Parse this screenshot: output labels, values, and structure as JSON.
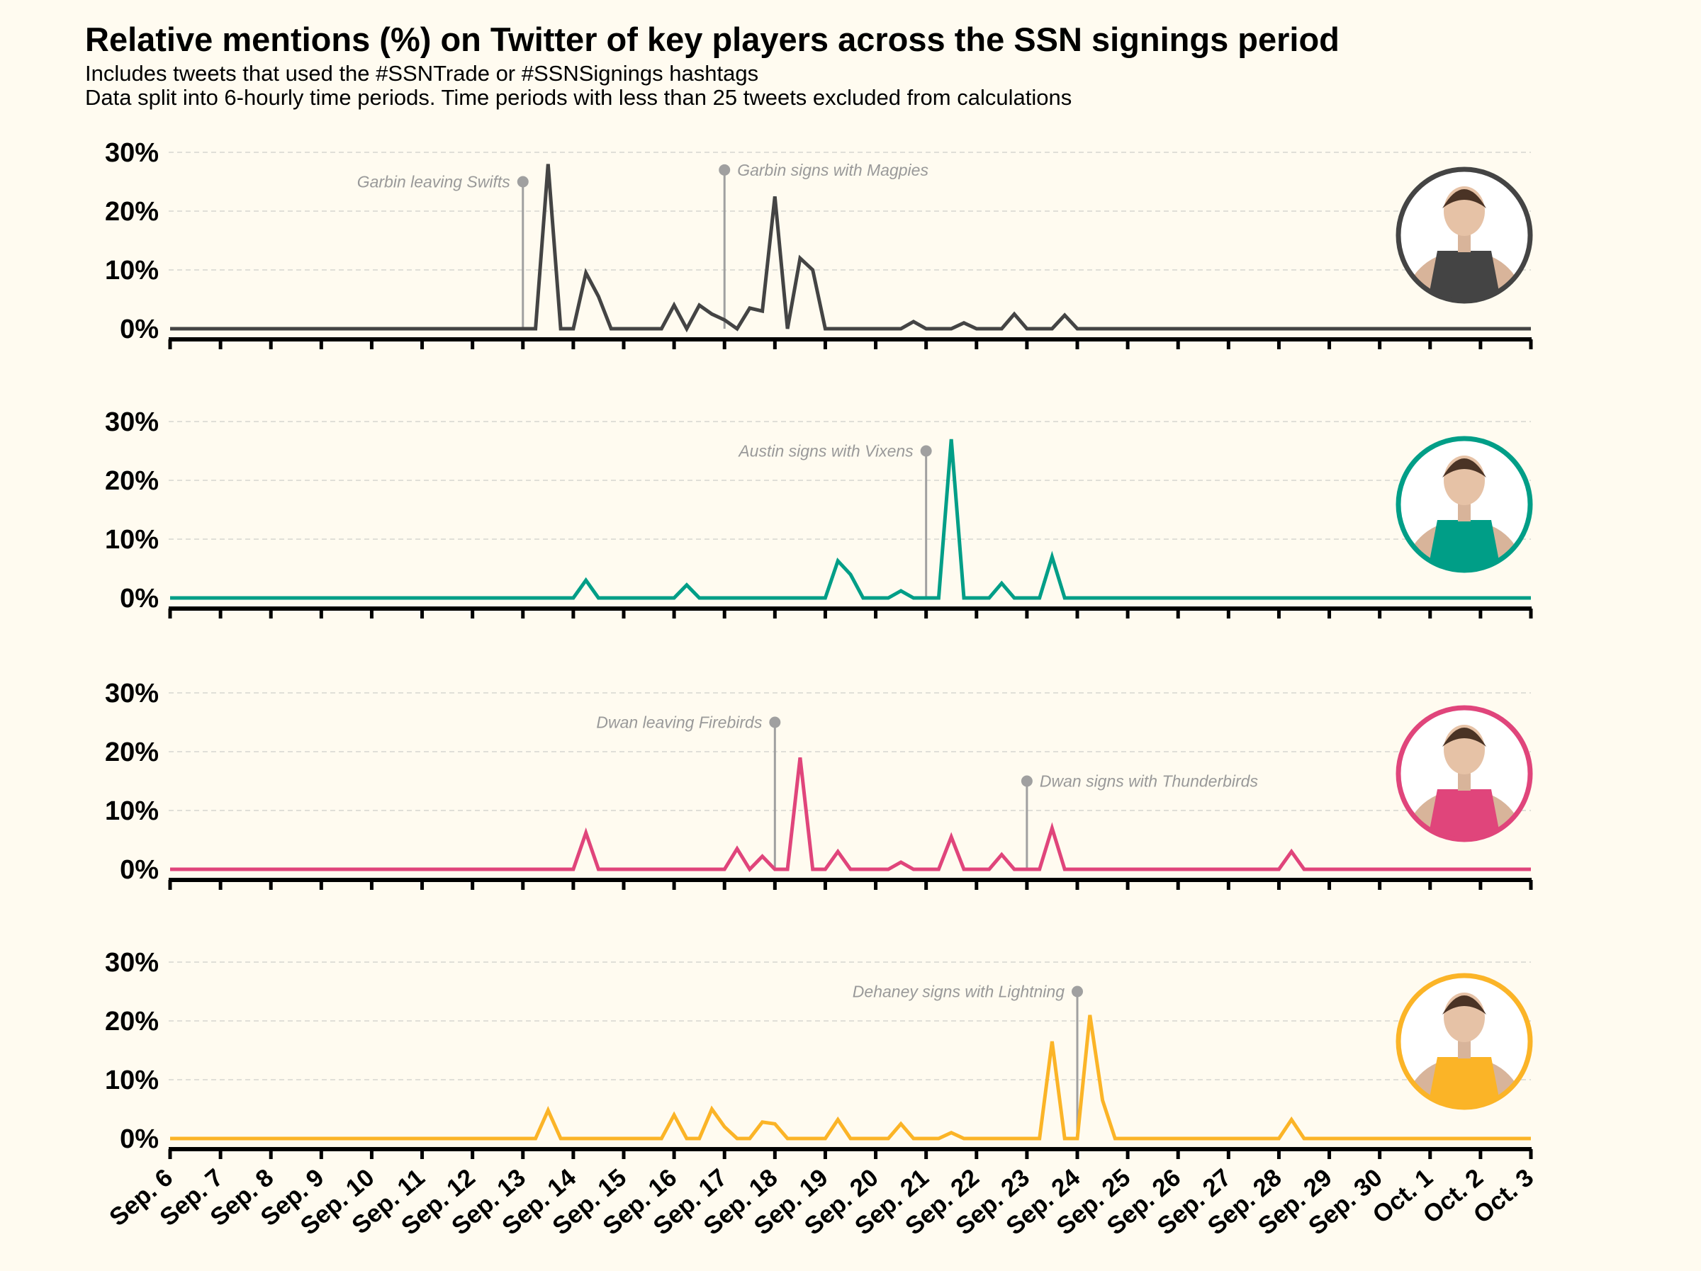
{
  "title": "Relative mentions (%) on Twitter of key players across the SSN signings period",
  "subtitle_line1": "Includes tweets that used the #SSNTrade or #SSNSignings hashtags",
  "subtitle_line2": "Data split into 6-hourly time periods. Time periods with less than 25 tweets excluded from calculations",
  "chart_data": {
    "type": "line",
    "x": [
      "Sep. 6",
      "Sep. 7",
      "Sep. 8",
      "Sep. 9",
      "Sep. 10",
      "Sep. 11",
      "Sep. 12",
      "Sep. 13",
      "Sep. 14",
      "Sep. 15",
      "Sep. 16",
      "Sep. 17",
      "Sep. 18",
      "Sep. 19",
      "Sep. 20",
      "Sep. 21",
      "Sep. 22",
      "Sep. 23",
      "Sep. 24",
      "Sep. 25",
      "Sep. 26",
      "Sep. 27",
      "Sep. 28",
      "Sep. 29",
      "Sep. 30",
      "Oct. 1",
      "Oct. 2",
      "Oct. 3"
    ],
    "y_ticks": [
      "0%",
      "10%",
      "20%",
      "30%"
    ],
    "ylim": [
      0,
      30
    ],
    "grid": "horizontal dashed",
    "panels": [
      {
        "color": "#444444",
        "points": [
          [
            "Sep. 6",
            0
          ],
          [
            "Sep. 13",
            0
          ],
          [
            "Sep. 13.25",
            0
          ],
          [
            "Sep. 13.5",
            28
          ],
          [
            "Sep. 13.75",
            0
          ],
          [
            "Sep. 14",
            0
          ],
          [
            "Sep. 14.25",
            9.5
          ],
          [
            "Sep. 14.5",
            5.5
          ],
          [
            "Sep. 14.75",
            0
          ],
          [
            "Sep. 15.75",
            0
          ],
          [
            "Sep. 16",
            4
          ],
          [
            "Sep. 16.25",
            0
          ],
          [
            "Sep. 16.5",
            4
          ],
          [
            "Sep. 16.75",
            2.5
          ],
          [
            "Sep. 17",
            1.5
          ],
          [
            "Sep. 17.25",
            0
          ],
          [
            "Sep. 17.5",
            3.5
          ],
          [
            "Sep. 17.75",
            3
          ],
          [
            "Sep. 18",
            22.5
          ],
          [
            "Sep. 18.25",
            0
          ],
          [
            "Sep. 18.5",
            12
          ],
          [
            "Sep. 18.75",
            10
          ],
          [
            "Sep. 19",
            0
          ],
          [
            "Sep. 20.5",
            0
          ],
          [
            "Sep. 20.75",
            1.2
          ],
          [
            "Sep. 21",
            0
          ],
          [
            "Sep. 21.5",
            0
          ],
          [
            "Sep. 21.75",
            1
          ],
          [
            "Sep. 22",
            0
          ],
          [
            "Sep. 22.5",
            0
          ],
          [
            "Sep. 22.75",
            2.5
          ],
          [
            "Sep. 23",
            0
          ],
          [
            "Sep. 23.5",
            0
          ],
          [
            "Sep. 23.75",
            2.3
          ],
          [
            "Sep. 24",
            0
          ],
          [
            "Oct. 3",
            0
          ]
        ],
        "annotations": [
          {
            "text": "Garbin leaving Swifts",
            "x": "Sep. 13",
            "y": 25,
            "side": "left"
          },
          {
            "text": "Garbin signs with Magpies",
            "x": "Sep. 17",
            "y": 27,
            "side": "right"
          }
        ]
      },
      {
        "color": "#009E87",
        "points": [
          [
            "Sep. 6",
            0
          ],
          [
            "Sep. 14",
            0
          ],
          [
            "Sep. 14.25",
            3
          ],
          [
            "Sep. 14.5",
            0
          ],
          [
            "Sep. 16",
            0
          ],
          [
            "Sep. 16.25",
            2.2
          ],
          [
            "Sep. 16.5",
            0
          ],
          [
            "Sep. 19",
            0
          ],
          [
            "Sep. 19.25",
            6.3
          ],
          [
            "Sep. 19.5",
            4
          ],
          [
            "Sep. 19.75",
            0
          ],
          [
            "Sep. 20.25",
            0
          ],
          [
            "Sep. 20.5",
            1.2
          ],
          [
            "Sep. 20.75",
            0
          ],
          [
            "Sep. 21.25",
            0
          ],
          [
            "Sep. 21.5",
            27
          ],
          [
            "Sep. 21.75",
            0
          ],
          [
            "Sep. 22.25",
            0
          ],
          [
            "Sep. 22.5",
            2.5
          ],
          [
            "Sep. 22.75",
            0
          ],
          [
            "Sep. 23.25",
            0
          ],
          [
            "Sep. 23.5",
            7
          ],
          [
            "Sep. 23.75",
            0
          ],
          [
            "Oct. 3",
            0
          ]
        ],
        "annotations": [
          {
            "text": "Austin signs with Vixens",
            "x": "Sep. 21",
            "y": 25,
            "side": "left"
          }
        ]
      },
      {
        "color": "#E0457B",
        "points": [
          [
            "Sep. 6",
            0
          ],
          [
            "Sep. 14",
            0
          ],
          [
            "Sep. 14.25",
            6.2
          ],
          [
            "Sep. 14.5",
            0
          ],
          [
            "Sep. 17",
            0
          ],
          [
            "Sep. 17.25",
            3.5
          ],
          [
            "Sep. 17.5",
            0
          ],
          [
            "Sep. 17.75",
            2.2
          ],
          [
            "Sep. 18",
            0
          ],
          [
            "Sep. 18.25",
            0
          ],
          [
            "Sep. 18.5",
            19
          ],
          [
            "Sep. 18.75",
            0
          ],
          [
            "Sep. 19",
            0
          ],
          [
            "Sep. 19.25",
            3
          ],
          [
            "Sep. 19.5",
            0
          ],
          [
            "Sep. 20.25",
            0
          ],
          [
            "Sep. 20.5",
            1.2
          ],
          [
            "Sep. 20.75",
            0
          ],
          [
            "Sep. 21.25",
            0
          ],
          [
            "Sep. 21.5",
            5.5
          ],
          [
            "Sep. 21.75",
            0
          ],
          [
            "Sep. 22.25",
            0
          ],
          [
            "Sep. 22.5",
            2.5
          ],
          [
            "Sep. 22.75",
            0
          ],
          [
            "Sep. 23.25",
            0
          ],
          [
            "Sep. 23.5",
            7
          ],
          [
            "Sep. 23.75",
            0
          ],
          [
            "Sep. 28",
            0
          ],
          [
            "Sep. 28.25",
            3
          ],
          [
            "Sep. 28.5",
            0
          ],
          [
            "Oct. 3",
            0
          ]
        ],
        "annotations": [
          {
            "text": "Dwan leaving Firebirds",
            "x": "Sep. 18",
            "y": 25,
            "side": "left"
          },
          {
            "text": "Dwan signs with Thunderbirds",
            "x": "Sep. 23",
            "y": 15,
            "side": "right"
          }
        ]
      },
      {
        "color": "#FBB427",
        "points": [
          [
            "Sep. 6",
            0
          ],
          [
            "Sep. 13.25",
            0
          ],
          [
            "Sep. 13.5",
            4.8
          ],
          [
            "Sep. 13.75",
            0
          ],
          [
            "Sep. 15.75",
            0
          ],
          [
            "Sep. 16",
            4
          ],
          [
            "Sep. 16.25",
            0
          ],
          [
            "Sep. 16.5",
            0
          ],
          [
            "Sep. 16.75",
            5
          ],
          [
            "Sep. 17",
            2
          ],
          [
            "Sep. 17.25",
            0
          ],
          [
            "Sep. 17.5",
            0
          ],
          [
            "Sep. 17.75",
            2.8
          ],
          [
            "Sep. 18",
            2.5
          ],
          [
            "Sep. 18.25",
            0
          ],
          [
            "Sep. 19",
            0
          ],
          [
            "Sep. 19.25",
            3.2
          ],
          [
            "Sep. 19.5",
            0
          ],
          [
            "Sep. 20.25",
            0
          ],
          [
            "Sep. 20.5",
            2.5
          ],
          [
            "Sep. 20.75",
            0
          ],
          [
            "Sep. 21.25",
            0
          ],
          [
            "Sep. 21.5",
            1
          ],
          [
            "Sep. 21.75",
            0
          ],
          [
            "Sep. 23.25",
            0
          ],
          [
            "Sep. 23.5",
            16.5
          ],
          [
            "Sep. 23.75",
            0
          ],
          [
            "Sep. 24",
            0
          ],
          [
            "Sep. 24.25",
            21
          ],
          [
            "Sep. 24.5",
            6.5
          ],
          [
            "Sep. 24.75",
            0
          ],
          [
            "Sep. 28",
            0
          ],
          [
            "Sep. 28.25",
            3.2
          ],
          [
            "Sep. 28.5",
            0
          ],
          [
            "Oct. 3",
            0
          ]
        ],
        "annotations": [
          {
            "text": "Dehaney signs with Lightning",
            "x": "Sep. 24",
            "y": 25,
            "side": "left"
          }
        ]
      }
    ]
  }
}
